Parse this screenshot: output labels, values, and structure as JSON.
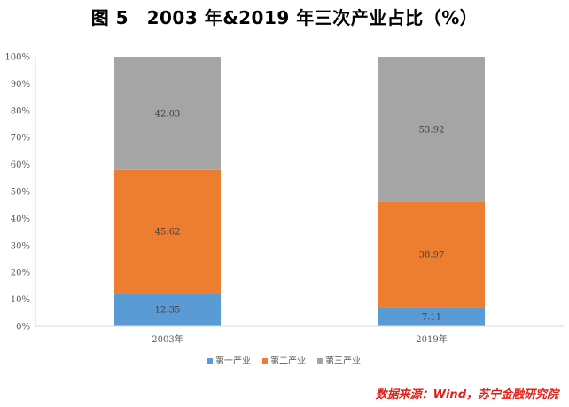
{
  "title": "图 5　2003 年&2019 年三次产业占比（%）",
  "source": "数据来源：Wind，苏宁金融研究院",
  "colors": {
    "primary": "#5b9bd5",
    "secondary": "#ed7d31",
    "tertiary": "#a5a5a5",
    "axis": "#d9d9d9"
  },
  "chart_data": {
    "type": "bar",
    "stacked": true,
    "percent_stacked": true,
    "categories": [
      "2003年",
      "2019年"
    ],
    "series": [
      {
        "name": "第一产业",
        "values": [
          12.35,
          7.11
        ]
      },
      {
        "name": "第二产业",
        "values": [
          45.62,
          38.97
        ]
      },
      {
        "name": "第三产业",
        "values": [
          42.03,
          53.92
        ]
      }
    ],
    "y_ticks": [
      "0%",
      "10%",
      "20%",
      "30%",
      "40%",
      "50%",
      "60%",
      "70%",
      "80%",
      "90%",
      "100%"
    ],
    "ylim": [
      0,
      100
    ],
    "grid": false,
    "legend_position": "bottom"
  }
}
